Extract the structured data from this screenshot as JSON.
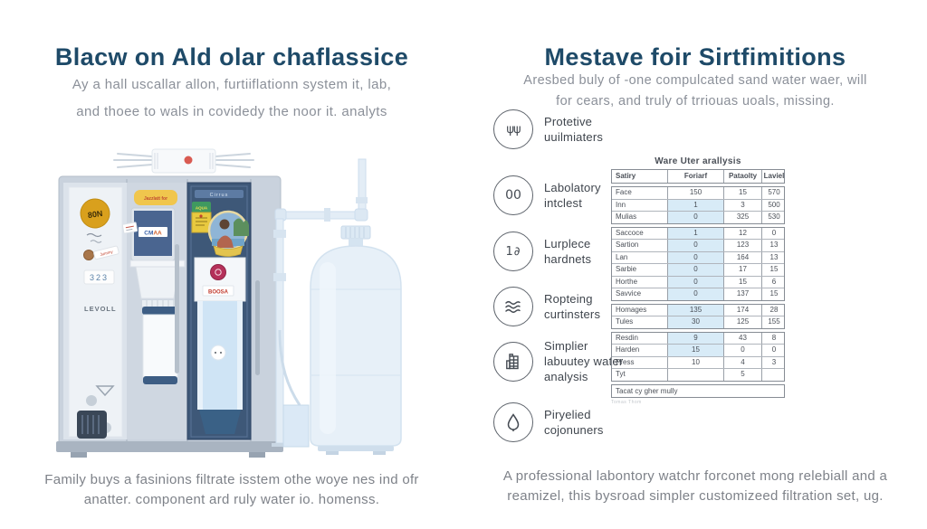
{
  "colors": {
    "accent_navy": "#1e4a68",
    "body_gray": "#8b9099",
    "table_shade": "#d8ebf7",
    "door_navy": "#3e5878",
    "badge_gold": "#d9a01d",
    "label_yellow": "#f0c64d",
    "can_green": "#3f9960",
    "crimson": "#b5315a",
    "tank_blue": "#e7f0f8"
  },
  "left": {
    "title": "Blacw on Ald olar chaflassice",
    "subtitle": [
      "Ay a hall uscallar allon, furtiiflationn system it, lab,",
      "and thoee to wals in covidedy the noor it. analyts"
    ],
    "caption": [
      "Family buys a fasinions filtrate isstem othe woye nes ind ofr",
      "anatter. component ard ruly water io. homenss."
    ],
    "illustration": {
      "badge": "80N",
      "sticker_small": "Jummy",
      "sticker_number": "323",
      "brand": "LEVOLL",
      "top_label": "Jazzlatt for",
      "screen_label_a": "CM",
      "screen_label_b": "AA",
      "door_header": "Cirrus",
      "can_label": "AQUA",
      "dispenser_label": "BOOSA"
    }
  },
  "right": {
    "title": "Mestave foir Sirtfimitions",
    "subtitle": [
      "Aresbed buly of -one compulcated sand water waer, will",
      "for cears, and truly of trriouas uoals, missing."
    ],
    "caption": [
      "A professional labontory watchr forconet mong relebiall and a",
      "reamizel, this bysroad simpler customizeed filtration set, ug."
    ],
    "features": [
      {
        "icon": "sprout-icon",
        "glyph": "ψψ",
        "label": "Protetive uuilmiaters"
      },
      {
        "icon": "capsules-icon",
        "glyph": "00",
        "label": "Labolatory intclest"
      },
      {
        "icon": "number-icon",
        "glyph": "1∂",
        "label": "Lurplece hardnets"
      },
      {
        "icon": "waves-icon",
        "glyph": "",
        "label": "Ropteing curtinsters"
      },
      {
        "icon": "lab-building-icon",
        "glyph": "",
        "label": "Simplier labuutey water analysis"
      },
      {
        "icon": "droplet-icon",
        "glyph": "",
        "label": "Piryelied cojonuners"
      }
    ],
    "table": {
      "title": "Ware Uter arallysis",
      "headers": [
        "Satiry",
        "Foriarf",
        "Pataolty",
        "Laviel"
      ],
      "groups": [
        [
          {
            "cells": [
              "Face",
              "150",
              "15",
              "570"
            ],
            "shaded": false
          },
          {
            "cells": [
              "Inn",
              "1",
              "3",
              "500"
            ],
            "shaded": true
          },
          {
            "cells": [
              "Mulias",
              "0",
              "325",
              "530"
            ],
            "shaded": true
          }
        ],
        [
          {
            "cells": [
              "Saccoce",
              "1",
              "12",
              "0"
            ],
            "shaded": true
          },
          {
            "cells": [
              "Sartion",
              "0",
              "123",
              "13"
            ],
            "shaded": true
          },
          {
            "cells": [
              "Lan",
              "0",
              "164",
              "13"
            ],
            "shaded": true
          },
          {
            "cells": [
              "Sarbie",
              "0",
              "17",
              "15"
            ],
            "shaded": true
          },
          {
            "cells": [
              "Horthe",
              "0",
              "15",
              "6"
            ],
            "shaded": true
          },
          {
            "cells": [
              "Savvice",
              "0",
              "137",
              "15"
            ],
            "shaded": true
          }
        ],
        [
          {
            "cells": [
              "Homages",
              "135",
              "174",
              "28"
            ],
            "shaded": true
          },
          {
            "cells": [
              "Tules",
              "30",
              "125",
              "155"
            ],
            "shaded": true
          }
        ],
        [
          {
            "cells": [
              "Resdin",
              "9",
              "43",
              "8"
            ],
            "shaded": true
          },
          {
            "cells": [
              "Harden",
              "15",
              "0",
              "0"
            ],
            "shaded": true
          },
          {
            "cells": [
              "Press",
              "10",
              "4",
              "3"
            ],
            "shaded": false
          },
          {
            "cells": [
              "Tyt",
              "",
              "5",
              ""
            ],
            "shaded": false
          }
        ]
      ],
      "footer": "Tacat cy gher mully",
      "footnote": "Tomas Thom"
    }
  }
}
